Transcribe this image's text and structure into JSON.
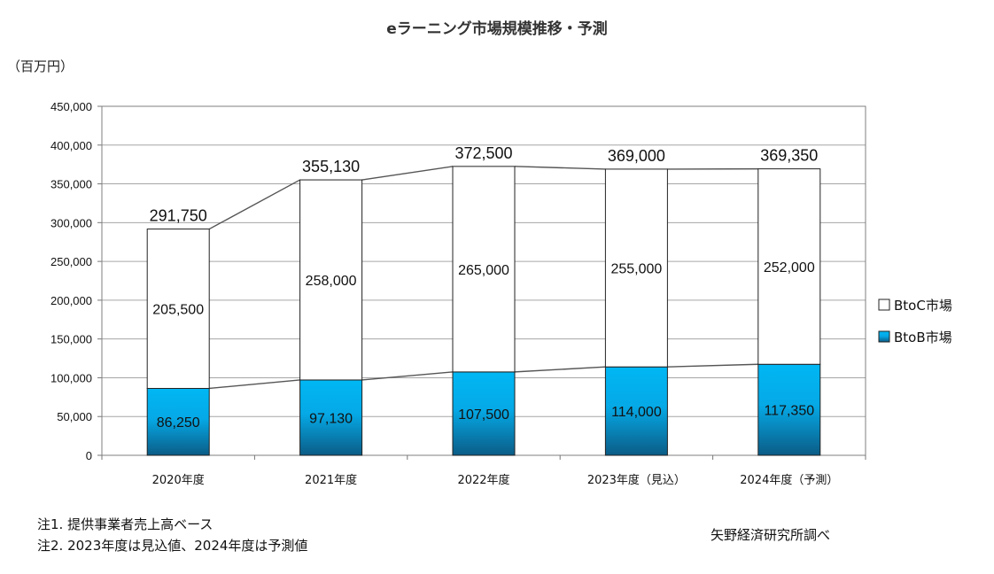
{
  "chart_data": {
    "type": "bar",
    "stacked": true,
    "title": "eラーニング市場規模推移・予測",
    "unit_label": "（百万円）",
    "categories": [
      "2020年度",
      "2021年度",
      "2022年度",
      "2023年度（見込）",
      "2024年度（予測）"
    ],
    "series": [
      {
        "name": "BtoB市場",
        "values": [
          86250,
          97130,
          107500,
          114000,
          117350
        ],
        "labels": [
          "86,250",
          "97,130",
          "107,500",
          "114,000",
          "117,350"
        ],
        "color": "#00b0f0"
      },
      {
        "name": "BtoC市場",
        "values": [
          205500,
          258000,
          265000,
          255000,
          252000
        ],
        "labels": [
          "205,500",
          "258,000",
          "265,000",
          "255,000",
          "252,000"
        ],
        "color": "#ffffff"
      }
    ],
    "totals": [
      291750,
      355130,
      372500,
      369000,
      369350
    ],
    "total_labels": [
      "291,750",
      "355,130",
      "372,500",
      "369,000",
      "369,350"
    ],
    "ylim": [
      0,
      450000
    ],
    "yticks": [
      0,
      50000,
      100000,
      150000,
      200000,
      250000,
      300000,
      350000,
      400000,
      450000
    ],
    "ytick_labels": [
      "0",
      "50,000",
      "100,000",
      "150,000",
      "200,000",
      "250,000",
      "300,000",
      "350,000",
      "400,000",
      "450,000"
    ],
    "grid": true,
    "legend_position": "right"
  },
  "notes": {
    "note1": "注1. 提供事業者売上高ベース",
    "note2": "注2. 2023年度は見込値、2024年度は予測値",
    "source": "矢野経済研究所調べ"
  }
}
